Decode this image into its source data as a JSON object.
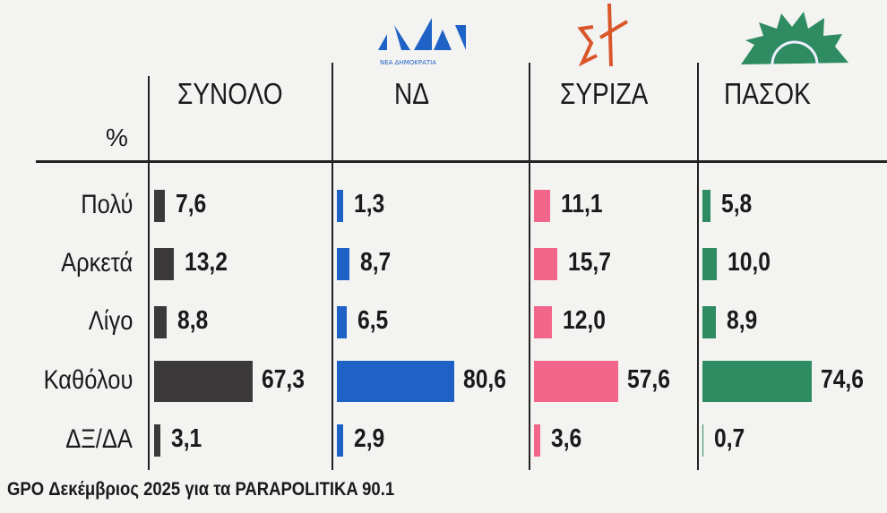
{
  "chart_data": {
    "type": "bar",
    "orientation": "horizontal",
    "unit_label": "%",
    "categories": [
      "Πολύ",
      "Αρκετά",
      "Λίγο",
      "Καθόλου",
      "ΔΞ/ΔΑ"
    ],
    "series": [
      {
        "name": "ΣΥΝΟΛΟ",
        "color": "#3b3939",
        "values": [
          7.6,
          13.2,
          8.8,
          67.3,
          3.1
        ],
        "labels": [
          "7,6",
          "13,2",
          "8,8",
          "67,3",
          "3,1"
        ]
      },
      {
        "name": "ΝΔ",
        "color": "#1f62c6",
        "values": [
          1.3,
          8.7,
          6.5,
          80.6,
          2.9
        ],
        "labels": [
          "1,3",
          "8,7",
          "6,5",
          "80,6",
          "2,9"
        ]
      },
      {
        "name": "ΣΥΡΙΖΑ",
        "color": "#f2668b",
        "values": [
          11.1,
          15.7,
          12.0,
          57.6,
          3.6
        ],
        "labels": [
          "11,1",
          "15,7",
          "12,0",
          "57,6",
          "3,6"
        ]
      },
      {
        "name": "ΠΑΣΟΚ",
        "color": "#2f8c62",
        "values": [
          5.8,
          10.0,
          8.9,
          74.6,
          0.7
        ],
        "labels": [
          "5,8",
          "10,0",
          "8,9",
          "74,6",
          "0,7"
        ]
      }
    ],
    "grid": false,
    "source": "GPO Δεκέμβριος 2025 για τα PARAPOLITIKA 90.1"
  },
  "logos": {
    "nd": "ΝΕΑ ΔΗΜΟΚΡΑΤΙΑ"
  }
}
